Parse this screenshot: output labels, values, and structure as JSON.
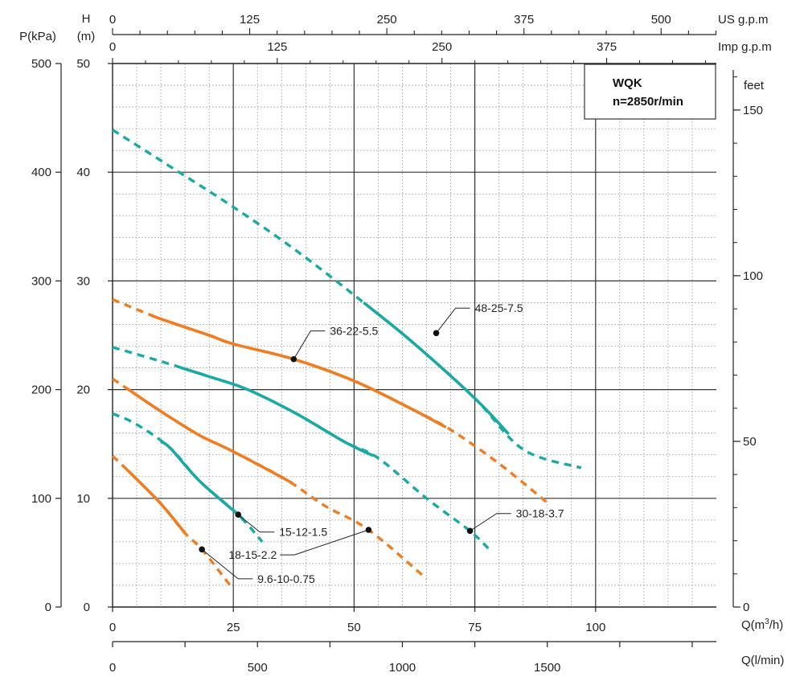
{
  "chart_data": {
    "type": "line",
    "info_box": {
      "line1": "WQK",
      "line2": "n=2850r/min"
    },
    "axes": {
      "q_m3h": {
        "unit": "Q(m³/h)",
        "unit_base": "Q(m",
        "unit_sup": "3",
        "unit_tail": "/h)",
        "range": [
          0,
          125
        ],
        "ticks": [
          "0",
          "25",
          "50",
          "75",
          "100"
        ],
        "tick_values": [
          0,
          25,
          50,
          75,
          100
        ]
      },
      "q_lmin": {
        "unit": "Q(l/min)",
        "ticks": [
          "0",
          "500",
          "1000",
          "1500"
        ],
        "tick_values": [
          0,
          500,
          1000,
          1500
        ]
      },
      "us_gpm": {
        "unit": "US g.p.m",
        "ticks": [
          "0",
          "125",
          "250",
          "375",
          "500"
        ],
        "tick_values": [
          0,
          125,
          250,
          375,
          500
        ]
      },
      "imp_gpm": {
        "unit": "Imp g.p.m",
        "ticks": [
          "0",
          "125",
          "250",
          "375"
        ],
        "tick_values": [
          0,
          125,
          250,
          375
        ]
      },
      "head_m": {
        "unit_top": "H",
        "unit_bottom": "(m)",
        "range": [
          0,
          50
        ],
        "ticks": [
          "0",
          "10",
          "20",
          "30",
          "40",
          "50"
        ],
        "tick_values": [
          0,
          10,
          20,
          30,
          40,
          50
        ]
      },
      "pressure_kpa": {
        "unit": "P(kPa)",
        "ticks": [
          "0",
          "100",
          "200",
          "300",
          "400",
          "500"
        ],
        "tick_values": [
          0,
          100,
          200,
          300,
          400,
          500
        ]
      },
      "feet": {
        "unit": "feet",
        "ticks": [
          "0",
          "50",
          "100",
          "150"
        ],
        "tick_values": [
          0,
          50,
          100,
          150
        ]
      }
    },
    "colors": {
      "orange": "#f07d22",
      "teal": "#1aaaa4"
    },
    "series": [
      {
        "name": "48-25-7.5",
        "color": "#1aaaa4",
        "points": [
          [
            0,
            43.9
          ],
          [
            12,
            40.5
          ],
          [
            25,
            36.8
          ],
          [
            38,
            32.8
          ],
          [
            52,
            28.0
          ],
          [
            62,
            24.4
          ],
          [
            75,
            19.2
          ],
          [
            85,
            14.5
          ],
          [
            97,
            12.8
          ]
        ],
        "solid_range": [
          52,
          82
        ],
        "marker": [
          67,
          25.2
        ],
        "label_pos": [
          75,
          27.5
        ]
      },
      {
        "name": "36-22-5.5",
        "color": "#f07d22",
        "points": [
          [
            0,
            28.3
          ],
          [
            10,
            26.5
          ],
          [
            20,
            25.0
          ],
          [
            25,
            24.2
          ],
          [
            37.5,
            22.8
          ],
          [
            50,
            20.8
          ],
          [
            62,
            18.2
          ],
          [
            70,
            16.3
          ],
          [
            80,
            13.2
          ],
          [
            90,
            9.6
          ]
        ],
        "solid_range": [
          8,
          69
        ],
        "marker": [
          37.5,
          22.8
        ],
        "label_pos": [
          45,
          25.4
        ]
      },
      {
        "name": "30-18-3.7",
        "color": "#1aaaa4",
        "points": [
          [
            0,
            23.9
          ],
          [
            10,
            22.6
          ],
          [
            20,
            21.2
          ],
          [
            28,
            20.0
          ],
          [
            38,
            17.8
          ],
          [
            48,
            15.2
          ],
          [
            55,
            13.7
          ],
          [
            65,
            10.0
          ],
          [
            74,
            7.0
          ],
          [
            78,
            5.3
          ]
        ],
        "solid_range": [
          14,
          54
        ],
        "marker": [
          74,
          7.0
        ],
        "label_pos": [
          83.5,
          8.6
        ]
      },
      {
        "name": "18-15-2.2",
        "color": "#f07d22",
        "points": [
          [
            0,
            21.0
          ],
          [
            10,
            18.0
          ],
          [
            18,
            15.8
          ],
          [
            25,
            14.3
          ],
          [
            36,
            11.7
          ],
          [
            44,
            9.3
          ],
          [
            53,
            7.1
          ],
          [
            65,
            2.6
          ]
        ],
        "solid_range": [
          3,
          37
        ],
        "marker": [
          53,
          7.1
        ],
        "label_pos": [
          34,
          4.8
        ]
      },
      {
        "name": "15-12-1.5",
        "color": "#1aaaa4",
        "points": [
          [
            0,
            17.8
          ],
          [
            5,
            16.8
          ],
          [
            12,
            14.6
          ],
          [
            18,
            11.6
          ],
          [
            26,
            8.5
          ],
          [
            31,
            6.0
          ]
        ],
        "solid_range": [
          10,
          27
        ],
        "marker": [
          26,
          8.5
        ],
        "label_pos": [
          34.5,
          6.9
        ]
      },
      {
        "name": "9.6-10-0.75",
        "color": "#f07d22",
        "points": [
          [
            0,
            13.9
          ],
          [
            4,
            12.2
          ],
          [
            10,
            9.5
          ],
          [
            15,
            6.8
          ],
          [
            18.5,
            5.3
          ],
          [
            24.5,
            1.9
          ]
        ],
        "solid_range": [
          3,
          15
        ],
        "marker": [
          18.5,
          5.3
        ],
        "label_pos": [
          30,
          2.6
        ]
      }
    ]
  }
}
